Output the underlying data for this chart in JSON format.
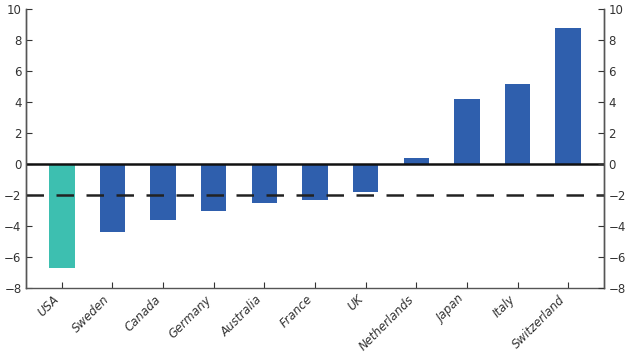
{
  "categories": [
    "USA",
    "Sweden",
    "Canada",
    "Germany",
    "Australia",
    "France",
    "UK",
    "Netherlands",
    "Japan",
    "Italy",
    "Switzerland"
  ],
  "values": [
    -6.7,
    -4.4,
    -3.6,
    -3.0,
    -2.5,
    -2.3,
    -1.8,
    0.4,
    4.2,
    5.2,
    8.8
  ],
  "bar_colors": [
    "#3dbfb0",
    "#2f5fad",
    "#2f5fad",
    "#2f5fad",
    "#2f5fad",
    "#2f5fad",
    "#2f5fad",
    "#2f5fad",
    "#2f5fad",
    "#2f5fad",
    "#2f5fad"
  ],
  "dashed_line_y": -2,
  "ylim": [
    -8,
    10
  ],
  "yticks": [
    -8,
    -6,
    -4,
    -2,
    0,
    2,
    4,
    6,
    8,
    10
  ],
  "background_color": "#ffffff",
  "bar_width": 0.5,
  "dashed_line_color": "#222222",
  "zero_line_color": "#111111",
  "spine_color": "#555555",
  "tick_color": "#555555"
}
